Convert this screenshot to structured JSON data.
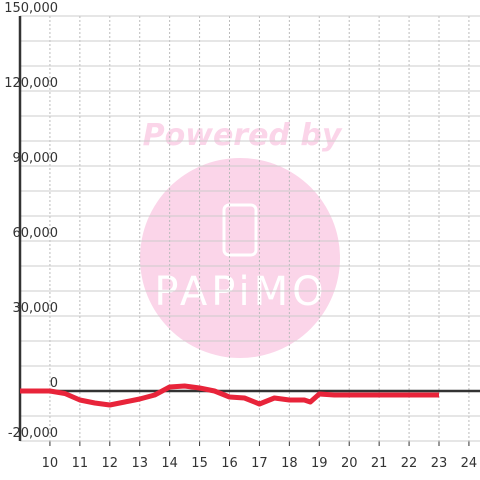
{
  "chart_data": {
    "type": "line",
    "x": [
      9,
      10,
      10.5,
      11,
      11.5,
      12,
      12.5,
      13,
      13.5,
      14,
      14.5,
      15,
      15.5,
      16,
      16.5,
      17,
      17.5,
      18,
      18.5,
      18.7,
      19,
      19.5,
      20,
      21,
      22,
      23
    ],
    "series": [
      {
        "color": "#e8243a",
        "values": [
          0,
          0,
          -1000,
          -3600,
          -4800,
          -5600,
          -4400,
          -3200,
          -1600,
          1600,
          2000,
          1200,
          0,
          -2400,
          -2800,
          -5200,
          -2800,
          -3600,
          -3600,
          -4400,
          -1200,
          -1600,
          -1600,
          -1600,
          -1600,
          -1600
        ]
      }
    ],
    "xlim": [
      9,
      24.37
    ],
    "xticks": [
      10,
      11,
      12,
      13,
      14,
      15,
      16,
      17,
      18,
      19,
      20,
      21,
      22,
      23,
      24
    ],
    "ylim": [
      -20000,
      150000
    ],
    "yticks": [
      {
        "value": -20000,
        "label": "-20,000"
      },
      0,
      {
        "value": 30000,
        "label": "30,000"
      },
      {
        "value": 60000,
        "label": "60,000"
      },
      {
        "value": 90000,
        "label": "90,000"
      },
      {
        "value": 120000,
        "label": "120,000"
      },
      {
        "value": 150000,
        "label": "150,000"
      }
    ],
    "y_minor_ticks": [
      -10000,
      10000,
      20000,
      40000,
      50000,
      70000,
      80000,
      100000,
      110000,
      130000,
      140000
    ],
    "grid": true,
    "watermark": {
      "line1": "Powered by",
      "line2": "PAPiMO"
    }
  }
}
